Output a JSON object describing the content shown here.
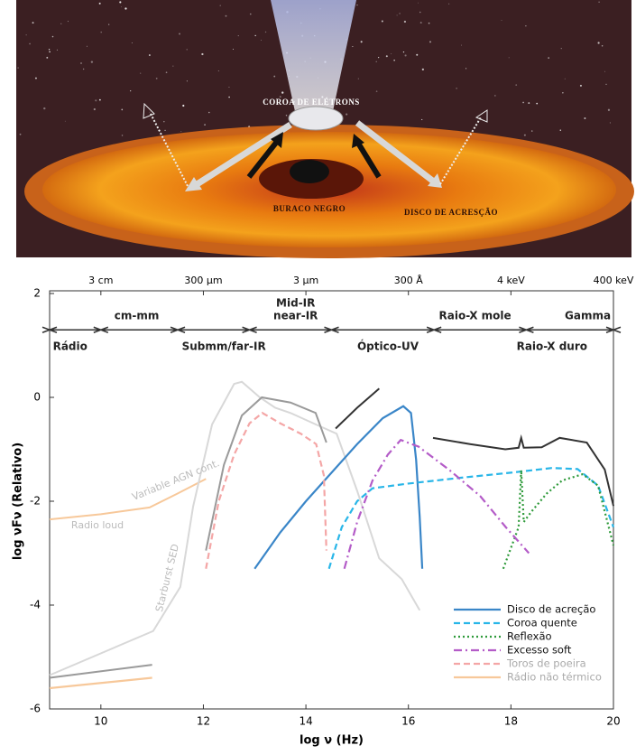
{
  "illustration": {
    "labels": [
      "COROA DE ELÉTRONS",
      "BURACO NEGRO",
      "DISCO DE ACRESÇÃO"
    ]
  },
  "chart_data": {
    "type": "line",
    "xlabel": "log ν (Hz)",
    "ylabel": "log νFν (Relativo)",
    "xlim": [
      9,
      20
    ],
    "xticks": [
      10,
      12,
      14,
      16,
      18,
      20
    ],
    "ylim": [
      -6,
      2
    ],
    "yticks": [
      2,
      0,
      -2,
      -4,
      -6
    ],
    "x2ticks": [
      {
        "value": 10,
        "label": "3 cm"
      },
      {
        "value": 12,
        "label": "300 μm"
      },
      {
        "value": 14,
        "label": "3 μm"
      },
      {
        "value": 16,
        "label": "300 Å"
      },
      {
        "value": 18,
        "label": "4 keV"
      },
      {
        "value": 20,
        "label": "400 keV"
      }
    ],
    "band_y": 1.3,
    "band_edges": [
      9,
      10,
      11.5,
      12.9,
      14.5,
      16.5,
      18.3,
      20
    ],
    "bands": [
      {
        "name": "Rádio",
        "x": 9.4
      },
      {
        "name": "cm-mm",
        "x": 10.7
      },
      {
        "name": "Submm/far-IR",
        "x": 12.4
      },
      {
        "name": "Mid-IR\nnear-IR",
        "x": 13.8
      },
      {
        "name": "Óptico-UV",
        "x": 15.6
      },
      {
        "name": "Raio-X mole",
        "x": 17.3
      },
      {
        "name": "Raio-X duro",
        "x": 18.8
      },
      {
        "name": "Gamma",
        "x": 19.5
      }
    ],
    "series": [
      {
        "name": "Disco de acreção",
        "color": "#3a86c8",
        "style": "solid",
        "x": [
          13.0,
          13.5,
          14,
          14.5,
          15,
          15.5,
          15.9,
          16.05,
          16.15,
          16.22,
          16.27
        ],
        "values": [
          -3.3,
          -2.6,
          -2.0,
          -1.45,
          -0.9,
          -0.4,
          -0.17,
          -0.3,
          -1.2,
          -2.3,
          -3.3
        ]
      },
      {
        "name": "Coroa quente",
        "color": "#29b6e8",
        "style": "dashed",
        "x": [
          14.45,
          14.7,
          15.0,
          15.3,
          16,
          17,
          18,
          18.8,
          19.3,
          19.7,
          20
        ],
        "values": [
          -3.3,
          -2.5,
          -2.0,
          -1.75,
          -1.66,
          -1.55,
          -1.45,
          -1.36,
          -1.38,
          -1.7,
          -2.5
        ]
      },
      {
        "name": "Reflexão",
        "color": "#2e9a3a",
        "style": "dotted",
        "x": [
          17.85,
          18.0,
          18.15,
          18.2,
          18.25,
          18.4,
          18.7,
          19.0,
          19.4,
          19.7,
          20
        ],
        "values": [
          -3.3,
          -2.9,
          -2.5,
          -1.4,
          -2.4,
          -2.2,
          -1.85,
          -1.6,
          -1.48,
          -1.7,
          -2.85
        ]
      },
      {
        "name": "Excesso soft",
        "color": "#b45cc8",
        "style": "dashdot",
        "x": [
          14.75,
          15.0,
          15.3,
          15.6,
          15.85,
          16.2,
          16.8,
          17.4,
          17.9,
          18.35
        ],
        "values": [
          -3.3,
          -2.4,
          -1.6,
          -1.1,
          -0.82,
          -0.95,
          -1.4,
          -1.9,
          -2.5,
          -3.0
        ]
      },
      {
        "name": "Toros de poeira",
        "color": "#f4a6a6",
        "style": "dashed",
        "faded": true,
        "x": [
          12.05,
          12.3,
          12.6,
          12.9,
          13.15,
          13.5,
          13.9,
          14.2,
          14.35,
          14.4
        ],
        "values": [
          -3.3,
          -2.0,
          -1.1,
          -0.5,
          -0.3,
          -0.5,
          -0.7,
          -0.9,
          -1.5,
          -2.95
        ]
      },
      {
        "name": "Rádio não térmico",
        "color": "#f7c89a",
        "style": "solid",
        "faded": true,
        "x": [
          9,
          11
        ],
        "values": [
          -5.6,
          -5.4
        ]
      }
    ],
    "background_curves": [
      {
        "color": "#f7c89a",
        "x": [
          9,
          10,
          10.95,
          11.5,
          12.05
        ],
        "values": [
          -2.35,
          -2.25,
          -2.12,
          -1.85,
          -1.57
        ]
      },
      {
        "color": "#d8d8d8",
        "x": [
          9,
          11.02,
          11.55,
          11.8,
          12.17,
          12.6,
          12.75,
          13.1,
          13.4,
          13.7,
          14.19,
          14.6,
          15.0,
          15.43,
          15.87,
          16.22
        ],
        "values": [
          -5.35,
          -4.5,
          -3.65,
          -2.1,
          -0.52,
          0.26,
          0.3,
          0.0,
          -0.2,
          -0.3,
          -0.52,
          -0.7,
          -1.8,
          -3.1,
          -3.5,
          -4.1
        ]
      },
      {
        "color": "#9a9a9a",
        "x": [
          9,
          11
        ],
        "values": [
          -5.4,
          -5.15
        ]
      },
      {
        "color": "#9a9a9a",
        "x": [
          12.05,
          12.4,
          12.75,
          13.14,
          13.7,
          14.19,
          14.4
        ],
        "values": [
          -2.95,
          -1.3,
          -0.35,
          0.0,
          -0.1,
          -0.3,
          -0.87
        ]
      },
      {
        "color": "#333333",
        "x": [
          14.58,
          15.0,
          15.43
        ],
        "values": [
          -0.6,
          -0.2,
          0.17
        ]
      },
      {
        "color": "#333333",
        "x": [
          16.48,
          17.2,
          17.89,
          18.15,
          18.2,
          18.25,
          18.6,
          18.95,
          19.48,
          19.83,
          20
        ],
        "values": [
          -0.78,
          -0.9,
          -1.0,
          -0.97,
          -0.78,
          -0.97,
          -0.96,
          -0.78,
          -0.87,
          -1.39,
          -2.09
        ]
      }
    ],
    "annotations": [
      "Variable AGN cont.",
      "Radio loud",
      "Starburst SED"
    ]
  }
}
